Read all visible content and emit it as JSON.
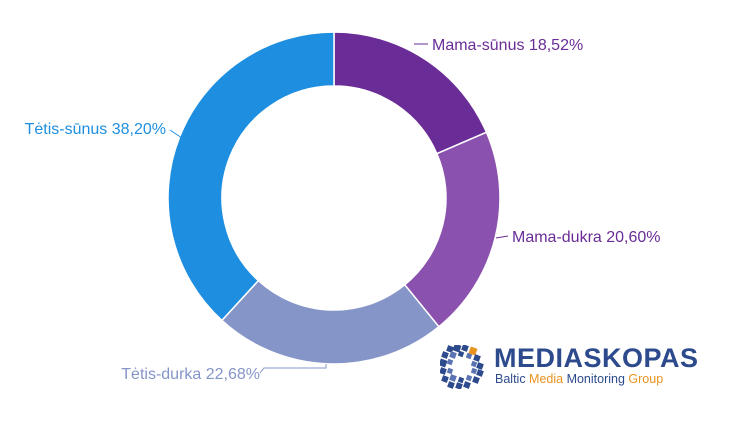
{
  "chart_data": {
    "type": "pie",
    "donut": true,
    "title": "",
    "slices": [
      {
        "name": "Mama-sūnus",
        "value": 18.52,
        "label": "Mama-sūnus 18,52%",
        "color": "#6a2c96"
      },
      {
        "name": "Mama-dukra",
        "value": 20.6,
        "label": "Mama-dukra 20,60%",
        "color": "#8a52ae"
      },
      {
        "name": "Tėtis-durka",
        "value": 22.68,
        "label": "Tėtis-durka 22,68%",
        "color": "#8595c8"
      },
      {
        "name": "Tėtis-sūnus",
        "value": 38.2,
        "label": "Tėtis-sūnus 38,20%",
        "color": "#1e8fe0"
      }
    ],
    "label_colors": [
      "#6a2c96",
      "#6a2c96",
      "#8595c8",
      "#1e8fe0"
    ],
    "start_angle_deg": 0,
    "direction": "clockwise"
  },
  "logo": {
    "name": "MEDIASKOPAS",
    "tagline_part1": "Baltic ",
    "tagline_accent": "Media",
    "tagline_part2": " Monitoring ",
    "tagline_accent2": "Group",
    "brand_color": "#2c4a8c",
    "accent_color": "#e8931e"
  }
}
